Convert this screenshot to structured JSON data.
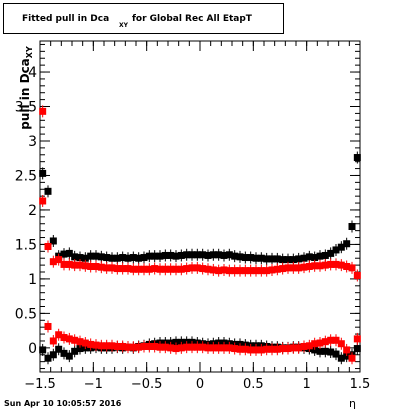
{
  "title": {
    "prefix": "Fitted pull in Dca",
    "subscript": "XY",
    "suffix": "for Global Rec All EtapT"
  },
  "footer": "Sun Apr 10 10:05:57 2016",
  "chart_data": {
    "type": "scatter",
    "title": "Fitted pull in Dca_XY for Global Rec All EtapT",
    "xlabel": "η",
    "ylabel": "pull in Dca_XY",
    "xlim": [
      -1.5,
      1.5
    ],
    "ylim": [
      -0.35,
      4.45
    ],
    "x_ticks": [
      -1.5,
      -1,
      -0.5,
      0,
      0.5,
      1,
      1.5
    ],
    "x_tick_labels": [
      "−1.5",
      "−1",
      "−0.5",
      "0",
      "0.5",
      "1",
      "1.5"
    ],
    "y_ticks": [
      0,
      0.5,
      1,
      1.5,
      2,
      2.5,
      3,
      3.5,
      4
    ],
    "y_tick_labels": [
      "0",
      "0.5",
      "1",
      "1.5",
      "2",
      "2.5",
      "3",
      "3.5",
      "4"
    ],
    "x": [
      -1.475,
      -1.425,
      -1.375,
      -1.325,
      -1.275,
      -1.225,
      -1.175,
      -1.125,
      -1.075,
      -1.025,
      -0.975,
      -0.925,
      -0.875,
      -0.825,
      -0.775,
      -0.725,
      -0.675,
      -0.625,
      -0.575,
      -0.525,
      -0.475,
      -0.425,
      -0.375,
      -0.325,
      -0.275,
      -0.225,
      -0.175,
      -0.125,
      -0.075,
      -0.025,
      0.025,
      0.075,
      0.125,
      0.175,
      0.225,
      0.275,
      0.325,
      0.375,
      0.425,
      0.475,
      0.525,
      0.575,
      0.625,
      0.675,
      0.725,
      0.775,
      0.825,
      0.875,
      0.925,
      0.975,
      1.025,
      1.075,
      1.125,
      1.175,
      1.225,
      1.275,
      1.325,
      1.375,
      1.425,
      1.475
    ],
    "series": [
      {
        "color": "#000000",
        "values": [
          2.53,
          2.27,
          1.55,
          1.33,
          1.36,
          1.37,
          1.32,
          1.31,
          1.3,
          1.33,
          1.33,
          1.32,
          1.31,
          1.3,
          1.3,
          1.31,
          1.3,
          1.31,
          1.3,
          1.31,
          1.33,
          1.33,
          1.33,
          1.34,
          1.34,
          1.33,
          1.34,
          1.35,
          1.35,
          1.35,
          1.35,
          1.34,
          1.35,
          1.35,
          1.34,
          1.35,
          1.33,
          1.32,
          1.31,
          1.31,
          1.3,
          1.3,
          1.29,
          1.29,
          1.29,
          1.28,
          1.28,
          1.28,
          1.29,
          1.3,
          1.32,
          1.31,
          1.33,
          1.34,
          1.37,
          1.42,
          1.46,
          1.51,
          1.76,
          2.76
        ]
      },
      {
        "color": "#000000",
        "values": [
          -0.03,
          -0.15,
          -0.1,
          -0.02,
          -0.08,
          -0.12,
          -0.05,
          -0.01,
          0.0,
          0.0,
          0.01,
          0.0,
          0.0,
          0.0,
          0.01,
          0.0,
          0.01,
          0.0,
          0.02,
          0.03,
          0.05,
          0.06,
          0.07,
          0.07,
          0.07,
          0.08,
          0.08,
          0.08,
          0.08,
          0.07,
          0.06,
          0.05,
          0.06,
          0.07,
          0.07,
          0.06,
          0.05,
          0.05,
          0.04,
          0.03,
          0.03,
          0.03,
          0.02,
          0.01,
          0.01,
          0.0,
          0.0,
          0.01,
          0.01,
          0.0,
          -0.01,
          -0.03,
          -0.05,
          -0.05,
          -0.06,
          -0.09,
          -0.15,
          -0.12,
          -0.1,
          -0.01
        ]
      },
      {
        "color": "#ff0000",
        "values": [
          3.43,
          1.47,
          1.25,
          1.28,
          1.21,
          1.21,
          1.2,
          1.2,
          1.19,
          1.18,
          1.18,
          1.17,
          1.16,
          1.16,
          1.15,
          1.15,
          1.15,
          1.14,
          1.14,
          1.14,
          1.14,
          1.15,
          1.14,
          1.14,
          1.14,
          1.14,
          1.14,
          1.15,
          1.16,
          1.16,
          1.15,
          1.14,
          1.13,
          1.12,
          1.13,
          1.12,
          1.12,
          1.12,
          1.12,
          1.12,
          1.12,
          1.12,
          1.12,
          1.13,
          1.14,
          1.15,
          1.16,
          1.16,
          1.16,
          1.17,
          1.18,
          1.19,
          1.19,
          1.2,
          1.21,
          1.21,
          1.2,
          1.18,
          1.16,
          1.05
        ]
      },
      {
        "color": "#ff0000",
        "values": [
          2.13,
          0.31,
          0.1,
          0.19,
          0.15,
          0.13,
          0.11,
          0.09,
          0.07,
          0.05,
          0.04,
          0.03,
          0.03,
          0.03,
          0.02,
          0.02,
          0.01,
          0.01,
          0.01,
          0.02,
          0.02,
          0.02,
          0.01,
          0.01,
          0.0,
          -0.01,
          0.0,
          0.01,
          0.01,
          0.01,
          0.01,
          0.0,
          0.0,
          0.0,
          0.0,
          0.0,
          -0.01,
          -0.02,
          -0.02,
          -0.03,
          -0.03,
          -0.03,
          -0.02,
          -0.02,
          -0.02,
          -0.01,
          -0.01,
          0.0,
          0.0,
          0.02,
          0.03,
          0.06,
          0.07,
          0.09,
          0.11,
          0.11,
          0.06,
          -0.03,
          -0.15,
          0.13
        ]
      }
    ]
  }
}
